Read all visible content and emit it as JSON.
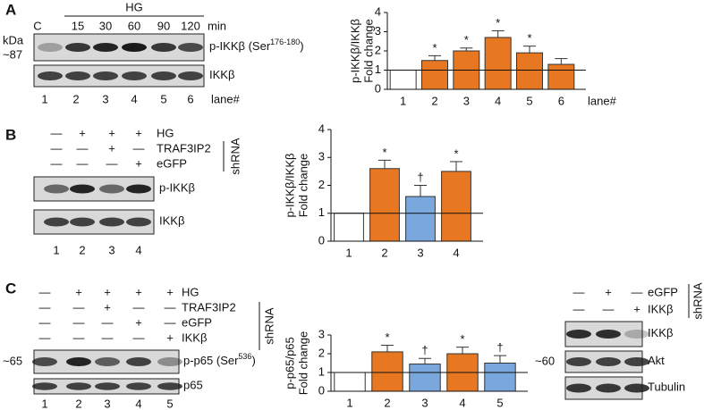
{
  "panels": [
    {
      "letter": "A",
      "kda": "kDa",
      "marker": "~87",
      "group": "HG",
      "time_unit": "min",
      "lanes_top": [
        "C",
        "15",
        "30",
        "60",
        "90",
        "120"
      ],
      "blots": [
        {
          "label": "p-IKKβ (Ser",
          "sup": "176-180",
          "suffix": ")"
        },
        {
          "label": "IKKβ"
        }
      ],
      "lanes": [
        "1",
        "2",
        "3",
        "4",
        "5",
        "6"
      ],
      "lane_label": "lane#"
    },
    {
      "letter": "B",
      "treatments": [
        {
          "label": "HG",
          "signs": [
            "—",
            "+",
            "+",
            "+"
          ]
        },
        {
          "label": "TRAF3IP2",
          "signs": [
            "—",
            "—",
            "+",
            "—"
          ]
        },
        {
          "label": "eGFP",
          "signs": [
            "—",
            "—",
            "—",
            "+"
          ]
        }
      ],
      "shrna": "shRNA",
      "blots": [
        {
          "label": "p-IKKβ"
        },
        {
          "label": "IKKβ"
        }
      ],
      "lanes": [
        "1",
        "2",
        "3",
        "4"
      ]
    },
    {
      "letter": "C",
      "marker": "~65",
      "treatments": [
        {
          "label": "HG",
          "signs": [
            "—",
            "+",
            "+",
            "+",
            "+"
          ]
        },
        {
          "label": "TRAF3IP2",
          "signs": [
            "—",
            "—",
            "+",
            "—",
            "—"
          ]
        },
        {
          "label": "eGFP",
          "signs": [
            "—",
            "—",
            "—",
            "+",
            "—"
          ]
        },
        {
          "label": "IKKβ",
          "signs": [
            "—",
            "—",
            "—",
            "—",
            "+"
          ]
        }
      ],
      "shrna": "shRNA",
      "blots": [
        {
          "label": "p-p65 (Ser",
          "sup": "536",
          "suffix": ")"
        },
        {
          "label": "p65"
        }
      ],
      "lanes": [
        "1",
        "2",
        "3",
        "4",
        "5"
      ]
    },
    {
      "marker": "~60",
      "treatments": [
        {
          "label": "eGFP",
          "signs": [
            "—",
            "+",
            "—"
          ]
        },
        {
          "label": "IKKβ",
          "signs": [
            "—",
            "—",
            "+"
          ]
        }
      ],
      "shrna": "shRNA",
      "blots": [
        {
          "label": "IKKβ"
        },
        {
          "label": "Akt"
        },
        {
          "label": "Tubulin"
        }
      ]
    }
  ],
  "chart_data": [
    {
      "type": "bar",
      "ylabel": [
        "p-IKKβ/IKKβ",
        "Fold change"
      ],
      "xlabel": "lane#",
      "categories": [
        "1",
        "2",
        "3",
        "4",
        "5",
        "6"
      ],
      "values": [
        1,
        1.5,
        2.0,
        2.7,
        1.9,
        1.3
      ],
      "errors": [
        null,
        0.25,
        0.15,
        0.35,
        0.35,
        0.3
      ],
      "colors": [
        "#ffffff",
        "#e87722",
        "#e87722",
        "#e87722",
        "#e87722",
        "#e87722"
      ],
      "markers": [
        null,
        "*",
        "*",
        "*",
        "*",
        null
      ],
      "reference_line": 1,
      "ylim": [
        0,
        4
      ],
      "yticks": [
        0,
        1,
        2,
        3,
        4
      ]
    },
    {
      "type": "bar",
      "ylabel": [
        "p-IKKβ/IKKβ",
        "Fold change"
      ],
      "categories": [
        "1",
        "2",
        "3",
        "4"
      ],
      "values": [
        1,
        2.6,
        1.6,
        2.5
      ],
      "errors": [
        null,
        0.3,
        0.4,
        0.35
      ],
      "colors": [
        "#ffffff",
        "#e87722",
        "#7aa7dc",
        "#e87722"
      ],
      "markers": [
        null,
        "*",
        "†",
        "*"
      ],
      "reference_line": 1,
      "ylim": [
        0,
        4
      ],
      "yticks": [
        0,
        1,
        2,
        3,
        4
      ]
    },
    {
      "type": "bar",
      "ylabel": [
        "p-p65/p65",
        "Fold change"
      ],
      "categories": [
        "1",
        "2",
        "3",
        "4",
        "5"
      ],
      "values": [
        1,
        2.1,
        1.45,
        2.0,
        1.5
      ],
      "errors": [
        null,
        0.35,
        0.3,
        0.35,
        0.4
      ],
      "colors": [
        "#ffffff",
        "#e87722",
        "#7aa7dc",
        "#e87722",
        "#7aa7dc"
      ],
      "markers": [
        null,
        "*",
        "†",
        "*",
        "†"
      ],
      "reference_line": 1,
      "ylim": [
        0,
        3
      ],
      "yticks": [
        0,
        1,
        2,
        3
      ]
    }
  ]
}
